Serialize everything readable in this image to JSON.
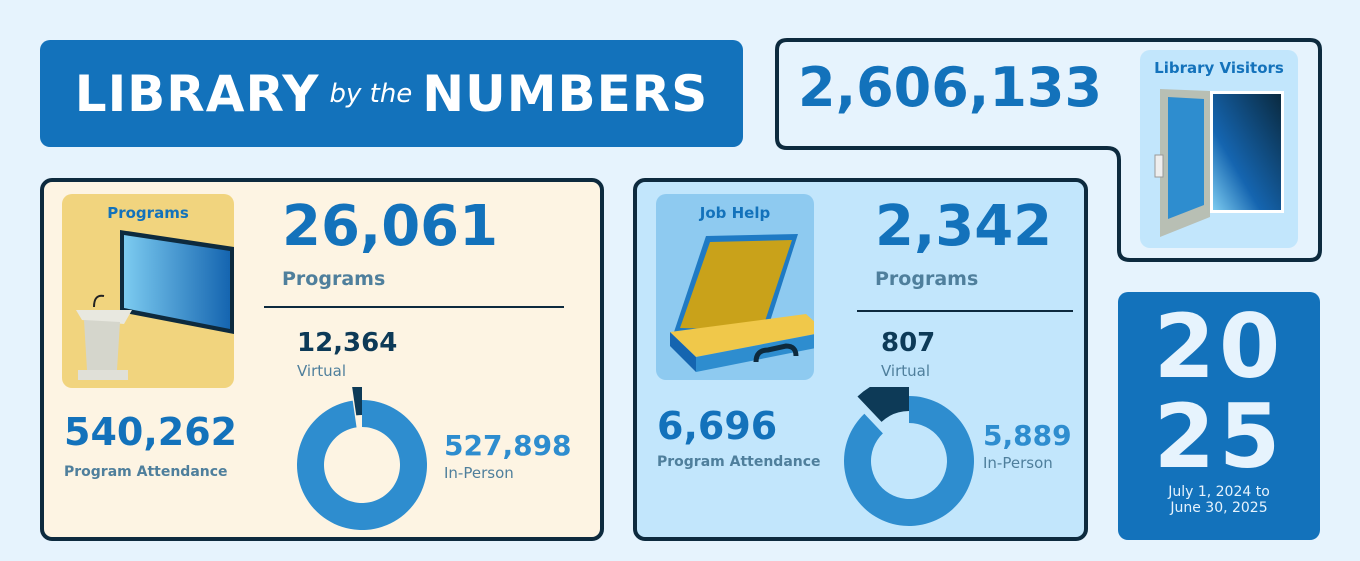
{
  "title": {
    "word1": "LIBRARY",
    "middle": "by the",
    "word2": "NUMBERS"
  },
  "visitors": {
    "value": "2,606,133",
    "label": "Library Visitors",
    "icon": "door-icon"
  },
  "programs": {
    "badge": "Programs",
    "icon": "podium-screen-icon",
    "count": "26,061",
    "count_label": "Programs",
    "attendance": "540,262",
    "attendance_label": "Program Attendance",
    "virtual": "12,364",
    "virtual_label": "Virtual",
    "in_person": "527,898",
    "in_person_label": "In-Person"
  },
  "job_help": {
    "badge": "Job Help",
    "icon": "briefcase-icon",
    "count": "2,342",
    "count_label": "Programs",
    "attendance": "6,696",
    "attendance_label": "Program Attendance",
    "virtual": "807",
    "virtual_label": "Virtual",
    "in_person": "5,889",
    "in_person_label": "In-Person"
  },
  "year": {
    "line1": "20",
    "line2": "25",
    "range1": "July 1, 2024 to",
    "range2": "June 30, 2025"
  },
  "colors": {
    "brand": "#1372bb",
    "dark": "#0d3a57",
    "light": "#2e8dcf",
    "cream": "#fdf4e3",
    "sky": "#c2e6fc"
  },
  "chart_data": [
    {
      "type": "pie",
      "title": "Program Attendance",
      "categories": [
        "Virtual",
        "In-Person"
      ],
      "values": [
        12364,
        527898
      ]
    },
    {
      "type": "pie",
      "title": "Job Help Program Attendance",
      "categories": [
        "Virtual",
        "In-Person"
      ],
      "values": [
        807,
        5889
      ]
    }
  ]
}
